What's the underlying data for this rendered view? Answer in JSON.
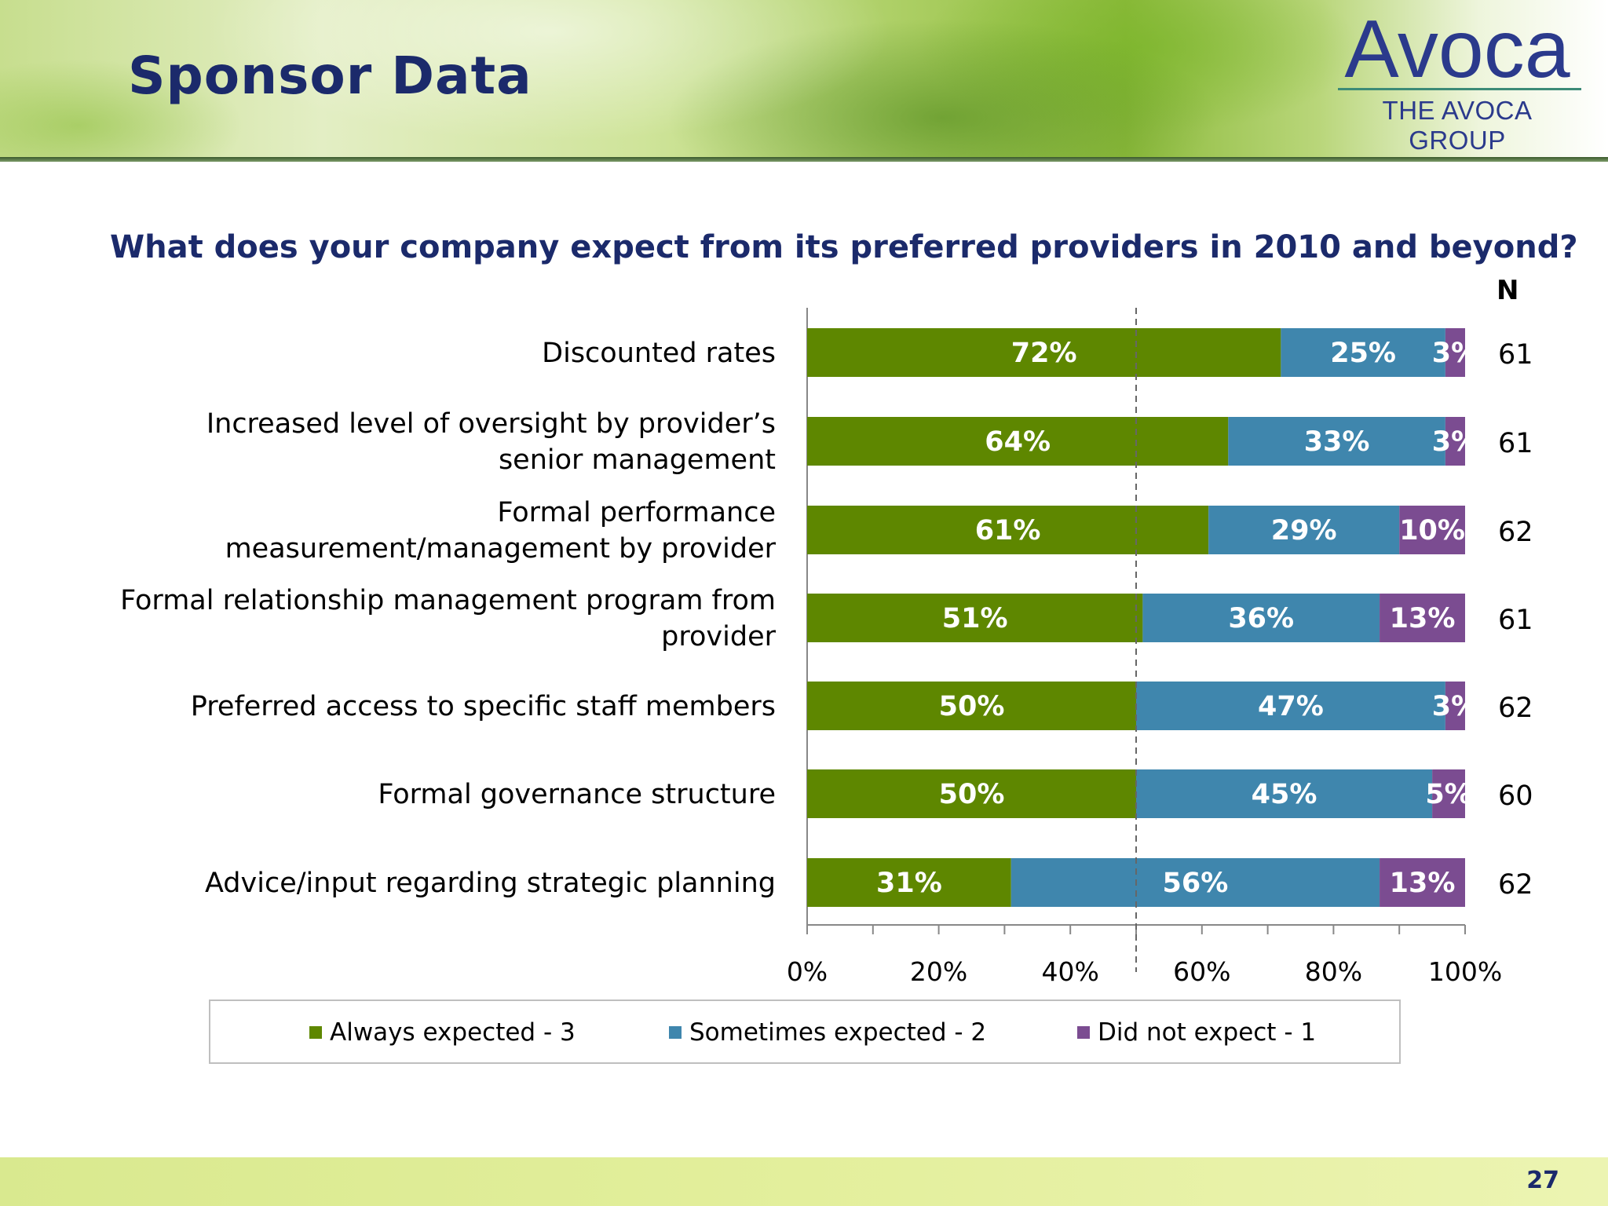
{
  "slide": {
    "title": "Sponsor Data",
    "question": "What does your company expect from its preferred providers in 2010 and beyond?",
    "n_header": "N",
    "page_number": "27"
  },
  "logo": {
    "name": "Avoca",
    "subtitle": "THE AVOCA GROUP"
  },
  "colors": {
    "always": "#5e8700",
    "sometimes": "#3f86ad",
    "did_not": "#7b4c91",
    "title_blue": "#1b2a6b"
  },
  "chart_data": {
    "type": "bar",
    "orientation": "horizontal",
    "stacked": true,
    "title": "What does your company expect from its preferred providers in 2010 and beyond?",
    "categories": [
      "Discounted rates",
      "Increased level of oversight by provider’s senior management",
      "Formal performance measurement/management by provider",
      "Formal relationship management program from provider",
      "Preferred access to specific staff members",
      "Formal governance structure",
      "Advice/input regarding strategic planning"
    ],
    "category_lines": [
      [
        "Discounted rates"
      ],
      [
        "Increased level of oversight by provider’s",
        "senior management"
      ],
      [
        "Formal performance",
        "measurement/management by provider"
      ],
      [
        "Formal relationship management program from",
        "provider"
      ],
      [
        "Preferred access to specific staff members"
      ],
      [
        "Formal governance structure"
      ],
      [
        "Advice/input regarding strategic planning"
      ]
    ],
    "series": [
      {
        "name": "Always expected - 3",
        "values": [
          72,
          64,
          61,
          51,
          50,
          50,
          31
        ]
      },
      {
        "name": "Sometimes expected - 2",
        "values": [
          25,
          33,
          29,
          36,
          47,
          45,
          56
        ]
      },
      {
        "name": "Did not expect - 1",
        "values": [
          3,
          3,
          10,
          13,
          3,
          5,
          13
        ]
      }
    ],
    "n_values": [
      61,
      61,
      62,
      61,
      62,
      60,
      62
    ],
    "xlim": [
      0,
      100
    ],
    "x_ticks": [
      "0%",
      "20%",
      "40%",
      "60%",
      "80%",
      "100%"
    ],
    "reference_line": 50,
    "legend_position": "bottom",
    "grid": false
  }
}
